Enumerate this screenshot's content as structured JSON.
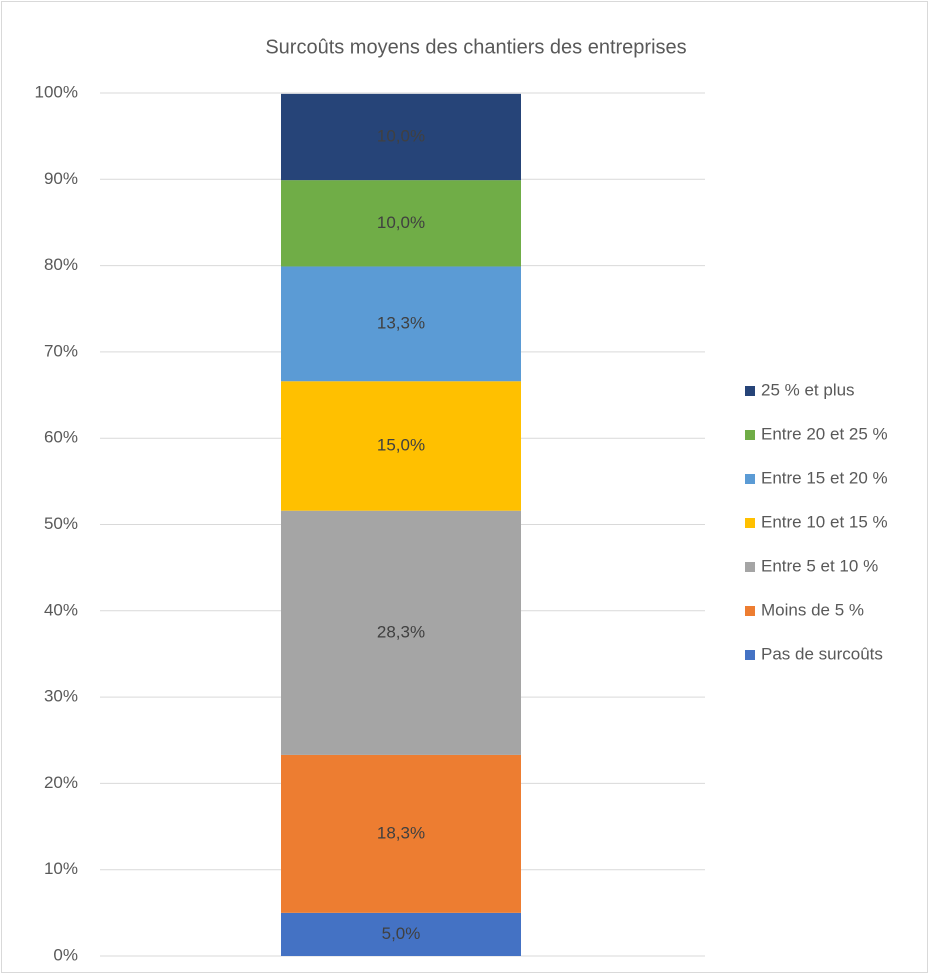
{
  "chart_data": {
    "type": "stacked_bar",
    "title": "Surcoûts moyens des chantiers des entreprises",
    "series": [
      {
        "name": "Pas de surcoûts",
        "color": "#4472c4",
        "values": [
          5.0
        ],
        "value_labels": [
          "5,0%"
        ]
      },
      {
        "name": "Moins de 5 %",
        "color": "#ed7d31",
        "values": [
          18.3
        ],
        "value_labels": [
          "18,3%"
        ]
      },
      {
        "name": "Entre 5 et 10 %",
        "color": "#a5a5a5",
        "values": [
          28.3
        ],
        "value_labels": [
          "28,3%"
        ]
      },
      {
        "name": "Entre 10 et 15 %",
        "color": "#ffc000",
        "values": [
          15.0
        ],
        "value_labels": [
          "15,0%"
        ]
      },
      {
        "name": "Entre 15 et 20 %",
        "color": "#5b9bd5",
        "values": [
          13.3
        ],
        "value_labels": [
          "13,3%"
        ]
      },
      {
        "name": "Entre 20 et 25 %",
        "color": "#70ad47",
        "values": [
          10.0
        ],
        "value_labels": [
          "10,0%"
        ]
      },
      {
        "name": "25 % et plus",
        "color": "#264478",
        "values": [
          10.0
        ],
        "value_labels": [
          "10,0%"
        ]
      }
    ],
    "ylim": [
      0,
      100
    ],
    "yticks": [
      {
        "value": 0,
        "label": "0%"
      },
      {
        "value": 10,
        "label": "10%"
      },
      {
        "value": 20,
        "label": "20%"
      },
      {
        "value": 30,
        "label": "30%"
      },
      {
        "value": 40,
        "label": "40%"
      },
      {
        "value": 50,
        "label": "50%"
      },
      {
        "value": 60,
        "label": "60%"
      },
      {
        "value": 70,
        "label": "70%"
      },
      {
        "value": 80,
        "label": "80%"
      },
      {
        "value": 90,
        "label": "90%"
      },
      {
        "value": 100,
        "label": "100%"
      }
    ],
    "grid": true,
    "legend": "right"
  }
}
